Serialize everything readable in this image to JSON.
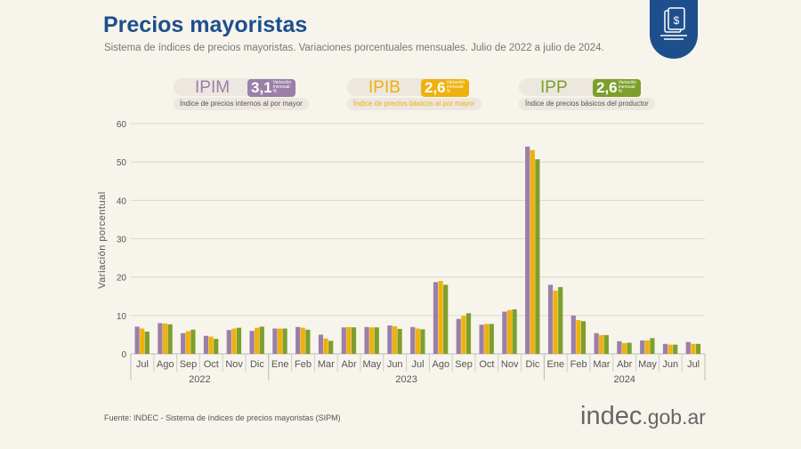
{
  "header": {
    "title": "Precios mayoristas",
    "subtitle": "Sistema de índices de precios mayoristas. Variaciones porcentuales mensuales. Julio de 2022 a julio de 2024."
  },
  "legend": [
    {
      "name": "IPIM",
      "value": "3,1",
      "note": "Variación mensual %",
      "desc": "Índice de precios internos al por mayor",
      "color": "#9b7fa8"
    },
    {
      "name": "IPIB",
      "value": "2,6",
      "note": "Variación mensual %",
      "desc": "Índice de precios básicos al por mayor",
      "color": "#efb10c"
    },
    {
      "name": "IPP",
      "value": "2,6",
      "note": "Variación mensual %",
      "desc": "Índice de precios básicos del productor",
      "color": "#7d9f2b"
    }
  ],
  "footer": {
    "source": "Fuente: INDEC - Sistema de índices de precios mayoristas (SIPM)",
    "logo_main": "indec",
    "logo_suffix": ".gob.ar"
  },
  "chart_data": {
    "type": "bar",
    "ylabel": "Variación porcentual",
    "ylim": [
      0,
      60
    ],
    "yticks": [
      0,
      10,
      20,
      30,
      40,
      50,
      60
    ],
    "grid": true,
    "categories": [
      "Jul",
      "Ago",
      "Sep",
      "Oct",
      "Nov",
      "Dic",
      "Ene",
      "Feb",
      "Mar",
      "Abr",
      "May",
      "Jun",
      "Jul",
      "Ago",
      "Sep",
      "Oct",
      "Nov",
      "Dic",
      "Ene",
      "Feb",
      "Mar",
      "Abr",
      "May",
      "Jun",
      "Jul"
    ],
    "years": [
      {
        "label": "2022",
        "count": 6
      },
      {
        "label": "2023",
        "count": 12
      },
      {
        "label": "2024",
        "count": 7
      }
    ],
    "series": [
      {
        "name": "IPIM",
        "color": "#9b7fa8",
        "values": [
          7.1,
          8.0,
          5.4,
          4.7,
          6.2,
          6.0,
          6.6,
          7.0,
          5.0,
          6.9,
          7.0,
          7.4,
          7.0,
          18.7,
          9.1,
          7.6,
          11.0,
          54.0,
          18.0,
          10.0,
          5.4,
          3.3,
          3.5,
          2.6,
          3.1
        ]
      },
      {
        "name": "IPIB",
        "color": "#efb10c",
        "values": [
          6.6,
          7.9,
          5.9,
          4.5,
          6.6,
          6.8,
          6.6,
          6.8,
          4.0,
          7.0,
          6.9,
          7.2,
          6.6,
          19.0,
          9.9,
          7.8,
          11.4,
          53.1,
          16.5,
          8.8,
          4.9,
          2.8,
          3.5,
          2.4,
          2.6
        ]
      },
      {
        "name": "IPP",
        "color": "#7d9f2b",
        "values": [
          5.8,
          7.7,
          6.3,
          3.9,
          6.8,
          7.1,
          6.6,
          6.3,
          3.4,
          6.9,
          6.9,
          6.5,
          6.4,
          18.0,
          10.6,
          7.8,
          11.6,
          50.7,
          17.4,
          8.5,
          4.9,
          2.9,
          4.1,
          2.4,
          2.6
        ]
      }
    ]
  }
}
